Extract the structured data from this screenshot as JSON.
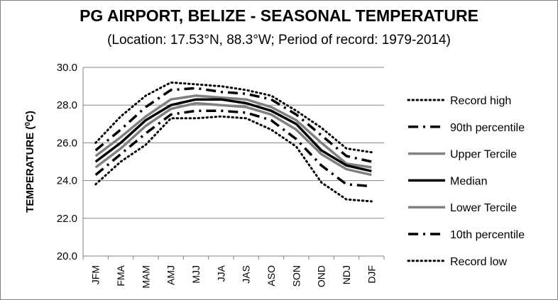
{
  "chart_data": {
    "type": "line",
    "title": "PG AIRPORT, BELIZE - SEASONAL TEMPERATURE",
    "subtitle": "(Location: 17.53°N, 88.3°W; Period of record: 1979-2014)",
    "ylabel_main": "TEMPERATURE (",
    "ylabel_sup": "0",
    "ylabel_end": "C)",
    "xlabel": "",
    "ylim": [
      20.0,
      30.0
    ],
    "yticks": [
      "20.0",
      "22.0",
      "24.0",
      "26.0",
      "28.0",
      "30.0"
    ],
    "ytick_values": [
      20,
      22,
      24,
      26,
      28,
      30
    ],
    "grid": true,
    "legend_position": "right",
    "categories": [
      "JFM",
      "FMA",
      "MAM",
      "AMJ",
      "MJJ",
      "JJA",
      "JAS",
      "ASO",
      "SON",
      "OND",
      "NDJ",
      "DJF"
    ],
    "series": [
      {
        "name": "Record high",
        "style": "dotted",
        "color": "#000000",
        "values": [
          26.0,
          27.4,
          28.5,
          29.2,
          29.1,
          29.0,
          28.8,
          28.5,
          27.7,
          26.8,
          25.7,
          25.5
        ]
      },
      {
        "name": "90th percentile",
        "style": "dashdot",
        "color": "#000000",
        "values": [
          25.6,
          26.7,
          27.9,
          28.8,
          28.9,
          28.7,
          28.6,
          28.3,
          27.5,
          26.4,
          25.3,
          25.0
        ]
      },
      {
        "name": "Upper Tercile",
        "style": "solid",
        "color": "#808080",
        "values": [
          25.3,
          26.3,
          27.4,
          28.3,
          28.5,
          28.4,
          28.3,
          27.9,
          27.2,
          26.0,
          24.9,
          24.7
        ]
      },
      {
        "name": "Median",
        "style": "solid",
        "color": "#000000",
        "values": [
          25.0,
          26.0,
          27.2,
          28.0,
          28.3,
          28.3,
          28.1,
          27.7,
          27.0,
          25.6,
          24.8,
          24.5
        ]
      },
      {
        "name": "Lower Tercile",
        "style": "solid",
        "color": "#808080",
        "values": [
          24.7,
          25.7,
          26.9,
          27.8,
          28.1,
          28.0,
          27.9,
          27.5,
          26.7,
          25.4,
          24.6,
          24.3
        ]
      },
      {
        "name": "10th percentile",
        "style": "dashdot",
        "color": "#000000",
        "values": [
          24.3,
          25.4,
          26.5,
          27.5,
          27.7,
          27.7,
          27.6,
          27.2,
          26.2,
          24.8,
          23.8,
          23.7
        ]
      },
      {
        "name": "Record low",
        "style": "dotted",
        "color": "#000000",
        "values": [
          23.8,
          25.0,
          25.9,
          27.3,
          27.3,
          27.4,
          27.3,
          26.7,
          25.8,
          23.9,
          23.0,
          22.9
        ]
      }
    ]
  }
}
